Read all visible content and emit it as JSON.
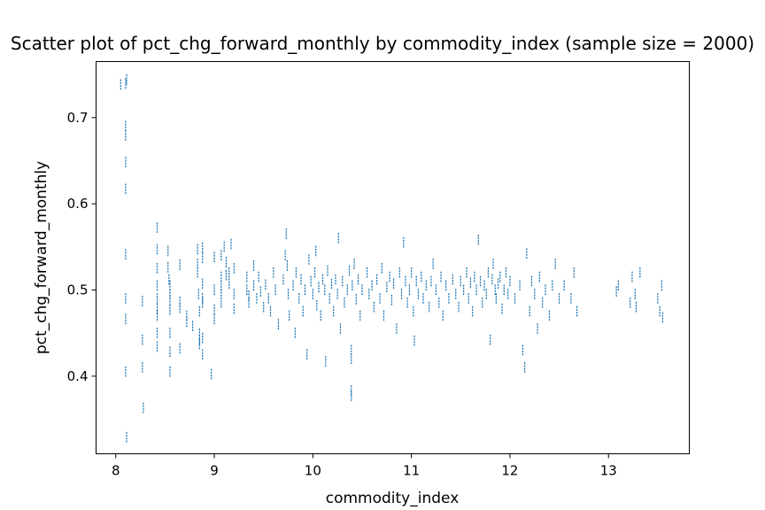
{
  "chart_data": {
    "type": "scatter",
    "title": "Scatter plot of pct_chg_forward_monthly by commodity_index (sample size = 2000)",
    "xlabel": "commodity_index",
    "ylabel": "pct_chg_forward_monthly",
    "xlim": [
      7.8,
      13.82
    ],
    "ylim": [
      0.31,
      0.765
    ],
    "xticks": [
      8,
      9,
      10,
      11,
      12,
      13
    ],
    "yticks": [
      0.4,
      0.5,
      0.6,
      0.7
    ],
    "grid": false,
    "legend": "none",
    "marker_color": "#1f77b4",
    "points_per_stripe": 4,
    "points": [
      [
        8.05,
        0.738
      ],
      [
        8.1,
        0.739
      ],
      [
        8.11,
        0.744
      ],
      [
        8.1,
        0.69
      ],
      [
        8.1,
        0.679
      ],
      [
        8.1,
        0.648
      ],
      [
        8.1,
        0.617
      ],
      [
        8.1,
        0.541
      ],
      [
        8.1,
        0.49
      ],
      [
        8.1,
        0.466
      ],
      [
        8.1,
        0.405
      ],
      [
        8.11,
        0.329
      ],
      [
        8.27,
        0.487
      ],
      [
        8.27,
        0.442
      ],
      [
        8.27,
        0.41
      ],
      [
        8.28,
        0.363
      ],
      [
        8.42,
        0.572
      ],
      [
        8.42,
        0.547
      ],
      [
        8.42,
        0.525
      ],
      [
        8.42,
        0.505
      ],
      [
        8.42,
        0.49
      ],
      [
        8.42,
        0.478
      ],
      [
        8.42,
        0.47
      ],
      [
        8.42,
        0.45
      ],
      [
        8.42,
        0.434
      ],
      [
        8.53,
        0.545
      ],
      [
        8.53,
        0.526
      ],
      [
        8.54,
        0.512
      ],
      [
        8.55,
        0.505
      ],
      [
        8.55,
        0.495
      ],
      [
        8.55,
        0.488
      ],
      [
        8.55,
        0.477
      ],
      [
        8.55,
        0.45
      ],
      [
        8.55,
        0.428
      ],
      [
        8.55,
        0.405
      ],
      [
        8.65,
        0.529
      ],
      [
        8.65,
        0.486
      ],
      [
        8.65,
        0.479
      ],
      [
        8.65,
        0.432
      ],
      [
        8.72,
        0.47
      ],
      [
        8.72,
        0.463
      ],
      [
        8.78,
        0.458
      ],
      [
        8.83,
        0.547
      ],
      [
        8.83,
        0.53
      ],
      [
        8.83,
        0.52
      ],
      [
        8.84,
        0.495
      ],
      [
        8.85,
        0.475
      ],
      [
        8.85,
        0.449
      ],
      [
        8.85,
        0.442
      ],
      [
        8.85,
        0.437
      ],
      [
        8.88,
        0.549
      ],
      [
        8.88,
        0.537
      ],
      [
        8.88,
        0.507
      ],
      [
        8.88,
        0.49
      ],
      [
        8.88,
        0.485
      ],
      [
        8.88,
        0.444
      ],
      [
        8.88,
        0.425
      ],
      [
        8.97,
        0.402
      ],
      [
        9.0,
        0.538
      ],
      [
        9.0,
        0.5
      ],
      [
        9.0,
        0.477
      ],
      [
        9.0,
        0.466
      ],
      [
        9.07,
        0.54
      ],
      [
        9.07,
        0.515
      ],
      [
        9.07,
        0.505
      ],
      [
        9.07,
        0.495
      ],
      [
        9.07,
        0.485
      ],
      [
        9.1,
        0.55
      ],
      [
        9.12,
        0.532
      ],
      [
        9.12,
        0.517
      ],
      [
        9.15,
        0.52
      ],
      [
        9.15,
        0.507
      ],
      [
        9.17,
        0.553
      ],
      [
        9.2,
        0.525
      ],
      [
        9.2,
        0.495
      ],
      [
        9.2,
        0.478
      ],
      [
        9.33,
        0.515
      ],
      [
        9.33,
        0.5
      ],
      [
        9.35,
        0.493
      ],
      [
        9.35,
        0.485
      ],
      [
        9.4,
        0.528
      ],
      [
        9.4,
        0.505
      ],
      [
        9.43,
        0.49
      ],
      [
        9.45,
        0.515
      ],
      [
        9.47,
        0.498
      ],
      [
        9.5,
        0.48
      ],
      [
        9.52,
        0.506
      ],
      [
        9.55,
        0.49
      ],
      [
        9.57,
        0.475
      ],
      [
        9.6,
        0.52
      ],
      [
        9.62,
        0.5
      ],
      [
        9.65,
        0.46
      ],
      [
        9.7,
        0.512
      ],
      [
        9.72,
        0.54
      ],
      [
        9.73,
        0.565
      ],
      [
        9.74,
        0.528
      ],
      [
        9.75,
        0.495
      ],
      [
        9.76,
        0.47
      ],
      [
        9.8,
        0.505
      ],
      [
        9.82,
        0.45
      ],
      [
        9.83,
        0.52
      ],
      [
        9.86,
        0.49
      ],
      [
        9.88,
        0.512
      ],
      [
        9.9,
        0.475
      ],
      [
        9.92,
        0.5
      ],
      [
        9.94,
        0.425
      ],
      [
        9.96,
        0.535
      ],
      [
        9.98,
        0.51
      ],
      [
        10.0,
        0.495
      ],
      [
        10.02,
        0.52
      ],
      [
        10.03,
        0.545
      ],
      [
        10.04,
        0.482
      ],
      [
        10.06,
        0.503
      ],
      [
        10.08,
        0.47
      ],
      [
        10.1,
        0.512
      ],
      [
        10.12,
        0.5
      ],
      [
        10.13,
        0.417
      ],
      [
        10.15,
        0.522
      ],
      [
        10.17,
        0.49
      ],
      [
        10.19,
        0.507
      ],
      [
        10.21,
        0.475
      ],
      [
        10.23,
        0.512
      ],
      [
        10.25,
        0.495
      ],
      [
        10.26,
        0.56
      ],
      [
        10.28,
        0.455
      ],
      [
        10.3,
        0.51
      ],
      [
        10.32,
        0.485
      ],
      [
        10.35,
        0.5
      ],
      [
        10.37,
        0.522
      ],
      [
        10.39,
        0.43
      ],
      [
        10.39,
        0.42
      ],
      [
        10.39,
        0.383
      ],
      [
        10.39,
        0.377
      ],
      [
        10.4,
        0.505
      ],
      [
        10.42,
        0.53
      ],
      [
        10.44,
        0.489
      ],
      [
        10.46,
        0.512
      ],
      [
        10.48,
        0.47
      ],
      [
        10.5,
        0.5
      ],
      [
        10.55,
        0.52
      ],
      [
        10.57,
        0.495
      ],
      [
        10.6,
        0.505
      ],
      [
        10.62,
        0.48
      ],
      [
        10.65,
        0.512
      ],
      [
        10.68,
        0.49
      ],
      [
        10.7,
        0.525
      ],
      [
        10.72,
        0.47
      ],
      [
        10.75,
        0.503
      ],
      [
        10.78,
        0.515
      ],
      [
        10.8,
        0.488
      ],
      [
        10.82,
        0.507
      ],
      [
        10.85,
        0.455
      ],
      [
        10.88,
        0.52
      ],
      [
        10.9,
        0.495
      ],
      [
        10.92,
        0.555
      ],
      [
        10.94,
        0.51
      ],
      [
        10.96,
        0.485
      ],
      [
        10.98,
        0.5
      ],
      [
        11.0,
        0.52
      ],
      [
        11.02,
        0.475
      ],
      [
        11.03,
        0.441
      ],
      [
        11.05,
        0.51
      ],
      [
        11.07,
        0.495
      ],
      [
        11.1,
        0.515
      ],
      [
        11.12,
        0.49
      ],
      [
        11.15,
        0.505
      ],
      [
        11.18,
        0.48
      ],
      [
        11.2,
        0.51
      ],
      [
        11.22,
        0.53
      ],
      [
        11.25,
        0.5
      ],
      [
        11.28,
        0.485
      ],
      [
        11.3,
        0.515
      ],
      [
        11.32,
        0.47
      ],
      [
        11.35,
        0.505
      ],
      [
        11.38,
        0.49
      ],
      [
        11.42,
        0.512
      ],
      [
        11.45,
        0.495
      ],
      [
        11.48,
        0.48
      ],
      [
        11.5,
        0.51
      ],
      [
        11.53,
        0.5
      ],
      [
        11.56,
        0.52
      ],
      [
        11.58,
        0.49
      ],
      [
        11.6,
        0.508
      ],
      [
        11.62,
        0.475
      ],
      [
        11.64,
        0.515
      ],
      [
        11.66,
        0.5
      ],
      [
        11.68,
        0.558
      ],
      [
        11.7,
        0.51
      ],
      [
        11.72,
        0.485
      ],
      [
        11.74,
        0.505
      ],
      [
        11.76,
        0.495
      ],
      [
        11.78,
        0.52
      ],
      [
        11.8,
        0.442
      ],
      [
        11.82,
        0.512
      ],
      [
        11.83,
        0.53
      ],
      [
        11.85,
        0.5
      ],
      [
        11.86,
        0.49
      ],
      [
        11.88,
        0.507
      ],
      [
        11.9,
        0.515
      ],
      [
        11.92,
        0.478
      ],
      [
        11.94,
        0.5
      ],
      [
        11.96,
        0.52
      ],
      [
        11.98,
        0.495
      ],
      [
        12.0,
        0.51
      ],
      [
        12.05,
        0.49
      ],
      [
        12.1,
        0.505
      ],
      [
        12.13,
        0.43
      ],
      [
        12.15,
        0.41
      ],
      [
        12.17,
        0.542
      ],
      [
        12.2,
        0.475
      ],
      [
        12.22,
        0.51
      ],
      [
        12.25,
        0.495
      ],
      [
        12.28,
        0.455
      ],
      [
        12.3,
        0.515
      ],
      [
        12.33,
        0.485
      ],
      [
        12.36,
        0.5
      ],
      [
        12.4,
        0.47
      ],
      [
        12.43,
        0.505
      ],
      [
        12.46,
        0.53
      ],
      [
        12.5,
        0.49
      ],
      [
        12.55,
        0.505
      ],
      [
        12.62,
        0.49
      ],
      [
        12.65,
        0.52
      ],
      [
        12.68,
        0.475
      ],
      [
        13.08,
        0.498
      ],
      [
        13.1,
        0.505
      ],
      [
        13.22,
        0.485
      ],
      [
        13.24,
        0.515
      ],
      [
        13.27,
        0.495
      ],
      [
        13.28,
        0.48
      ],
      [
        13.32,
        0.52
      ],
      [
        13.5,
        0.49
      ],
      [
        13.52,
        0.475
      ],
      [
        13.54,
        0.505
      ],
      [
        13.55,
        0.468
      ]
    ]
  }
}
